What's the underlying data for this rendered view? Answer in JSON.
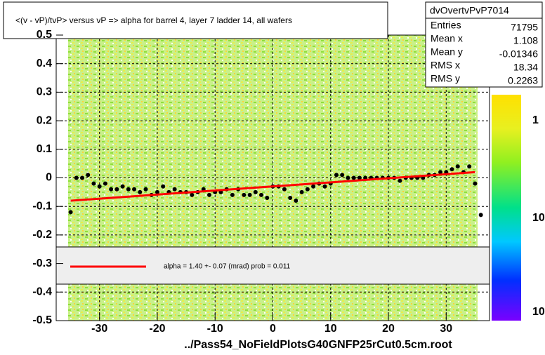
{
  "chart_data": {
    "type": "scatter",
    "title": "<(v - vP)/tvP> versus   vP => alpha for barrel 4, layer 7 ladder 14, all wafers",
    "x_label": "../Pass54_NoFieldPlotsG40GNFP25rCut0.5cm.root",
    "xlim": [
      -37.5,
      37.5
    ],
    "xticks": [
      -30,
      -20,
      -10,
      0,
      10,
      20,
      30
    ],
    "ylim": [
      -0.5,
      0.5
    ],
    "yticks": [
      -0.5,
      -0.4,
      -0.3,
      -0.2,
      -0.1,
      0,
      0.1,
      0.2,
      0.3,
      0.4,
      0.5
    ],
    "grid": true,
    "series": [
      {
        "name": "profile",
        "color": "#000000",
        "x": [
          -35,
          -34,
          -33,
          -32,
          -31,
          -30,
          -29,
          -28,
          -27,
          -26,
          -25,
          -24,
          -23,
          -22,
          -21,
          -20,
          -19,
          -18,
          -17,
          -16,
          -15,
          -14,
          -13,
          -12,
          -11,
          -10,
          -9,
          -8,
          -7,
          -6,
          -5,
          -4,
          -3,
          -2,
          -1,
          0,
          1,
          2,
          3,
          4,
          5,
          6,
          7,
          8,
          9,
          10,
          11,
          12,
          13,
          14,
          15,
          16,
          17,
          18,
          19,
          20,
          21,
          22,
          23,
          24,
          25,
          26,
          27,
          28,
          29,
          30,
          31,
          32,
          33,
          34,
          35,
          36
        ],
        "values": [
          -0.12,
          0.0,
          0.0,
          0.01,
          -0.02,
          -0.03,
          -0.02,
          -0.04,
          -0.04,
          -0.03,
          -0.04,
          -0.04,
          -0.05,
          -0.04,
          -0.06,
          -0.05,
          -0.03,
          -0.05,
          -0.04,
          -0.05,
          -0.05,
          -0.06,
          -0.05,
          -0.04,
          -0.06,
          -0.05,
          -0.05,
          -0.04,
          -0.06,
          -0.04,
          -0.06,
          -0.06,
          -0.05,
          -0.06,
          -0.07,
          -0.03,
          -0.03,
          -0.04,
          -0.07,
          -0.08,
          -0.05,
          -0.04,
          -0.03,
          -0.02,
          -0.03,
          -0.02,
          0.01,
          0.01,
          0.0,
          0.0,
          0.0,
          0.0,
          0.0,
          0.0,
          0.0,
          0.0,
          0.0,
          -0.01,
          0.0,
          0.0,
          0.0,
          0.0,
          0.01,
          0.01,
          0.02,
          0.02,
          0.03,
          0.04,
          0.02,
          0.04,
          -0.02,
          -0.13
        ]
      }
    ],
    "fit": {
      "color": "#ff0000",
      "x": [
        -35,
        35
      ],
      "values": [
        -0.08,
        0.02
      ],
      "legend_label": "alpha =    1.40 +-  0.07 (mrad) prob = 0.011"
    },
    "stats": {
      "name": "dvOvertvPvP7014",
      "rows": [
        [
          "Entries",
          "71795"
        ],
        [
          "Mean x",
          "1.108"
        ],
        [
          "Mean y",
          "-0.01346"
        ],
        [
          "RMS x",
          "18.34"
        ],
        [
          "RMS y",
          "0.2263"
        ]
      ]
    },
    "z_axis_labels": [
      "1",
      "10",
      "10"
    ]
  }
}
